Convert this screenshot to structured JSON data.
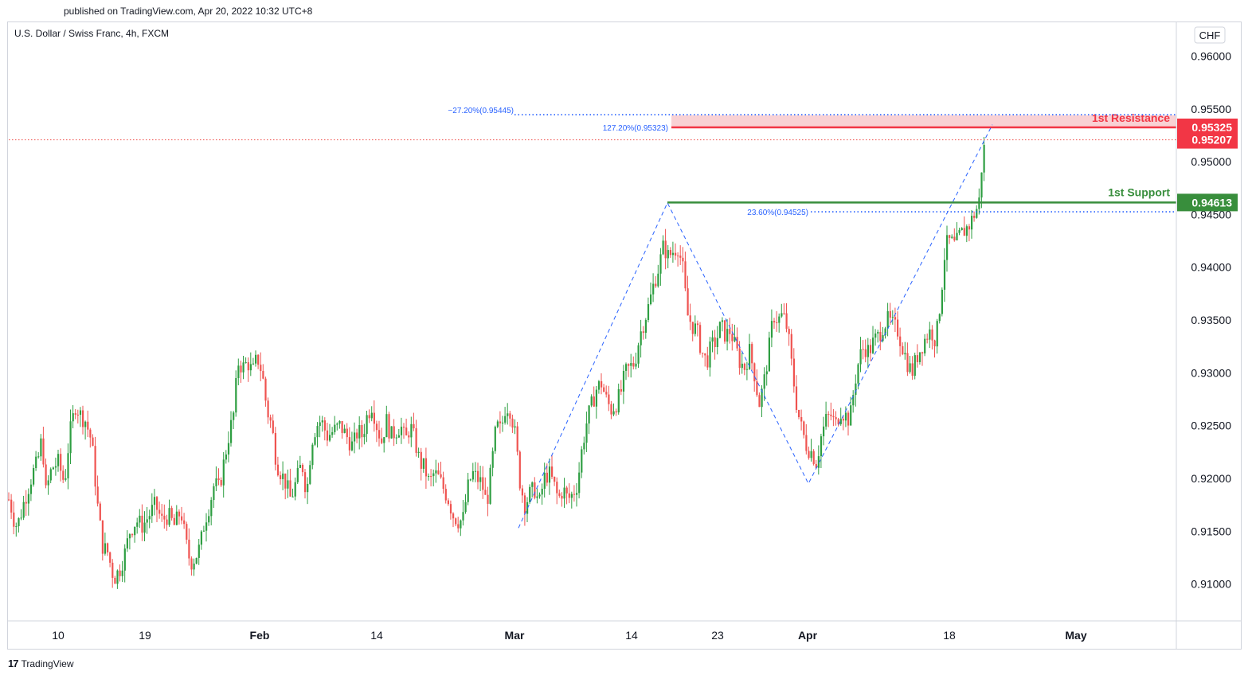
{
  "header": {
    "published": "published on TradingView.com, Apr 20, 2022 10:32 UTC+8"
  },
  "footer": {
    "logo_mark": "17",
    "logo_text": "TradingView"
  },
  "colors": {
    "up": "#26a69a",
    "up_body": "#2e9e42",
    "down": "#ef5350",
    "resistance": "#f23645",
    "support": "#388e3c",
    "fib": "#2962ff"
  },
  "chart_data": {
    "type": "candlestick",
    "symbol": "U.S. Dollar / Swiss Franc, 4h, FXCM",
    "currency": "CHF",
    "ylim": [
      0.9065,
      0.9632
    ],
    "y_ticks": [
      {
        "value": 0.96,
        "label": "0.96000"
      },
      {
        "value": 0.955,
        "label": "0.95500"
      },
      {
        "value": 0.95,
        "label": "0.95000"
      },
      {
        "value": 0.945,
        "label": "0.94500"
      },
      {
        "value": 0.94,
        "label": "0.94000"
      },
      {
        "value": 0.935,
        "label": "0.93500"
      },
      {
        "value": 0.93,
        "label": "0.93000"
      },
      {
        "value": 0.925,
        "label": "0.92500"
      },
      {
        "value": 0.92,
        "label": "0.92000"
      },
      {
        "value": 0.915,
        "label": "0.91500"
      },
      {
        "value": 0.91,
        "label": "0.91000"
      }
    ],
    "x_ticks": [
      {
        "label": "10",
        "bold": false
      },
      {
        "label": "19",
        "bold": false
      },
      {
        "label": "Feb",
        "bold": true
      },
      {
        "label": "14",
        "bold": false
      },
      {
        "label": "Mar",
        "bold": true
      },
      {
        "label": "14",
        "bold": false
      },
      {
        "label": "23",
        "bold": false
      },
      {
        "label": "Apr",
        "bold": true
      },
      {
        "label": "18",
        "bold": false
      },
      {
        "label": "May",
        "bold": true
      }
    ],
    "price_path": [
      [
        0,
        0.918
      ],
      [
        4,
        0.917
      ],
      [
        8,
        0.9155
      ],
      [
        13,
        0.916
      ],
      [
        18,
        0.9175
      ],
      [
        24,
        0.919
      ],
      [
        30,
        0.9205
      ],
      [
        36,
        0.9215
      ],
      [
        42,
        0.924
      ],
      [
        46,
        0.9185
      ],
      [
        54,
        0.921
      ],
      [
        62,
        0.9215
      ],
      [
        70,
        0.9195
      ],
      [
        76,
        0.924
      ],
      [
        84,
        0.927
      ],
      [
        90,
        0.926
      ],
      [
        96,
        0.9255
      ],
      [
        104,
        0.9235
      ],
      [
        112,
        0.917
      ],
      [
        118,
        0.9135
      ],
      [
        124,
        0.913
      ],
      [
        132,
        0.9105
      ],
      [
        140,
        0.9115
      ],
      [
        146,
        0.913
      ],
      [
        152,
        0.915
      ],
      [
        160,
        0.916
      ],
      [
        168,
        0.9155
      ],
      [
        176,
        0.9165
      ],
      [
        184,
        0.9175
      ],
      [
        192,
        0.916
      ],
      [
        200,
        0.9165
      ],
      [
        208,
        0.9155
      ],
      [
        216,
        0.917
      ],
      [
        222,
        0.914
      ],
      [
        228,
        0.912
      ],
      [
        234,
        0.9125
      ],
      [
        240,
        0.9135
      ],
      [
        246,
        0.916
      ],
      [
        252,
        0.9175
      ],
      [
        258,
        0.9195
      ],
      [
        264,
        0.919
      ],
      [
        270,
        0.9215
      ],
      [
        276,
        0.924
      ],
      [
        282,
        0.926
      ],
      [
        288,
        0.931
      ],
      [
        294,
        0.9305
      ],
      [
        300,
        0.931
      ],
      [
        306,
        0.93
      ],
      [
        312,
        0.9315
      ],
      [
        318,
        0.93
      ],
      [
        324,
        0.9265
      ],
      [
        330,
        0.925
      ],
      [
        336,
        0.9215
      ],
      [
        342,
        0.9205
      ],
      [
        348,
        0.9195
      ],
      [
        354,
        0.918
      ],
      [
        360,
        0.9195
      ],
      [
        368,
        0.9215
      ],
      [
        374,
        0.9185
      ],
      [
        380,
        0.9235
      ],
      [
        386,
        0.925
      ],
      [
        392,
        0.9255
      ],
      [
        400,
        0.924
      ],
      [
        408,
        0.9245
      ],
      [
        416,
        0.925
      ],
      [
        424,
        0.924
      ],
      [
        432,
        0.923
      ],
      [
        438,
        0.9245
      ],
      [
        444,
        0.924
      ],
      [
        450,
        0.926
      ],
      [
        456,
        0.927
      ],
      [
        462,
        0.925
      ],
      [
        468,
        0.9235
      ],
      [
        474,
        0.9255
      ],
      [
        480,
        0.924
      ],
      [
        486,
        0.9245
      ],
      [
        492,
        0.925
      ],
      [
        498,
        0.9235
      ],
      [
        504,
        0.925
      ],
      [
        510,
        0.9235
      ],
      [
        516,
        0.9215
      ],
      [
        522,
        0.921
      ],
      [
        528,
        0.9195
      ],
      [
        534,
        0.9205
      ],
      [
        540,
        0.92
      ],
      [
        546,
        0.919
      ],
      [
        552,
        0.918
      ],
      [
        558,
        0.9165
      ],
      [
        564,
        0.916
      ],
      [
        570,
        0.916
      ],
      [
        576,
        0.919
      ],
      [
        582,
        0.9205
      ],
      [
        588,
        0.92
      ],
      [
        594,
        0.9195
      ],
      [
        600,
        0.9175
      ],
      [
        606,
        0.921
      ],
      [
        612,
        0.925
      ],
      [
        618,
        0.9245
      ],
      [
        624,
        0.927
      ],
      [
        630,
        0.9265
      ],
      [
        636,
        0.924
      ],
      [
        642,
        0.9195
      ],
      [
        648,
        0.9175
      ],
      [
        654,
        0.9185
      ],
      [
        660,
        0.919
      ],
      [
        666,
        0.9175
      ],
      [
        672,
        0.92
      ],
      [
        678,
        0.9205
      ],
      [
        684,
        0.9195
      ],
      [
        690,
        0.918
      ],
      [
        696,
        0.919
      ],
      [
        702,
        0.918
      ],
      [
        708,
        0.9185
      ],
      [
        714,
        0.9195
      ],
      [
        720,
        0.923
      ],
      [
        726,
        0.9255
      ],
      [
        732,
        0.927
      ],
      [
        738,
        0.9285
      ],
      [
        744,
        0.929
      ],
      [
        750,
        0.9275
      ],
      [
        756,
        0.9265
      ],
      [
        762,
        0.927
      ],
      [
        768,
        0.928
      ],
      [
        774,
        0.93
      ],
      [
        780,
        0.9305
      ],
      [
        786,
        0.931
      ],
      [
        792,
        0.9335
      ],
      [
        798,
        0.935
      ],
      [
        804,
        0.9365
      ],
      [
        810,
        0.9385
      ],
      [
        816,
        0.94
      ],
      [
        822,
        0.942
      ],
      [
        828,
        0.941
      ],
      [
        834,
        0.9415
      ],
      [
        840,
        0.942
      ],
      [
        846,
        0.94
      ],
      [
        852,
        0.9355
      ],
      [
        858,
        0.9345
      ],
      [
        864,
        0.934
      ],
      [
        870,
        0.932
      ],
      [
        876,
        0.931
      ],
      [
        882,
        0.9325
      ],
      [
        888,
        0.933
      ],
      [
        894,
        0.9345
      ],
      [
        900,
        0.9335
      ],
      [
        906,
        0.934
      ],
      [
        912,
        0.9325
      ],
      [
        918,
        0.931
      ],
      [
        924,
        0.9305
      ],
      [
        930,
        0.932
      ],
      [
        936,
        0.93
      ],
      [
        942,
        0.927
      ],
      [
        948,
        0.929
      ],
      [
        954,
        0.932
      ],
      [
        960,
        0.9355
      ],
      [
        966,
        0.935
      ],
      [
        972,
        0.9355
      ],
      [
        978,
        0.934
      ],
      [
        984,
        0.93
      ],
      [
        990,
        0.9265
      ],
      [
        996,
        0.9245
      ],
      [
        1002,
        0.923
      ],
      [
        1008,
        0.9225
      ],
      [
        1014,
        0.9215
      ],
      [
        1020,
        0.924
      ],
      [
        1026,
        0.9255
      ],
      [
        1032,
        0.926
      ],
      [
        1038,
        0.925
      ],
      [
        1044,
        0.9265
      ],
      [
        1050,
        0.926
      ],
      [
        1056,
        0.9255
      ],
      [
        1062,
        0.929
      ],
      [
        1068,
        0.9315
      ],
      [
        1074,
        0.9325
      ],
      [
        1080,
        0.932
      ],
      [
        1086,
        0.933
      ],
      [
        1092,
        0.9335
      ],
      [
        1098,
        0.9345
      ],
      [
        1104,
        0.935
      ],
      [
        1110,
        0.9345
      ],
      [
        1116,
        0.934
      ],
      [
        1122,
        0.9325
      ],
      [
        1128,
        0.931
      ],
      [
        1134,
        0.93
      ],
      [
        1140,
        0.9315
      ],
      [
        1146,
        0.9325
      ],
      [
        1152,
        0.9335
      ],
      [
        1158,
        0.934
      ],
      [
        1164,
        0.933
      ],
      [
        1170,
        0.937
      ],
      [
        1176,
        0.942
      ],
      [
        1182,
        0.9425
      ],
      [
        1188,
        0.942
      ],
      [
        1194,
        0.943
      ],
      [
        1200,
        0.9435
      ],
      [
        1206,
        0.944
      ],
      [
        1212,
        0.945
      ],
      [
        1218,
        0.946
      ],
      [
        1222,
        0.95
      ],
      [
        1226,
        0.952
      ]
    ],
    "zigzag": [
      {
        "x": 651,
        "y": 0.9153
      },
      {
        "x": 838,
        "y": 0.9461
      },
      {
        "x": 1015,
        "y": 0.9195
      },
      {
        "x": 1246,
        "y": 0.9535
      }
    ],
    "levels": {
      "resistance": {
        "value": 0.95325,
        "label": "1st Resistance",
        "price_label": "0.95325",
        "zone_top": 0.9544
      },
      "support": {
        "value": 0.94613,
        "label": "1st Support",
        "price_label": "0.94613"
      },
      "current": {
        "value": 0.95207,
        "price_label": "0.95207"
      },
      "fib_upper": {
        "value": 0.95445,
        "label": "−27.20%(0.95445)"
      },
      "fib_127": {
        "value": 0.95323,
        "label": "127.20%(0.95323)"
      },
      "fib_236": {
        "value": 0.94525,
        "label": "23.60%(0.94525)"
      }
    }
  }
}
